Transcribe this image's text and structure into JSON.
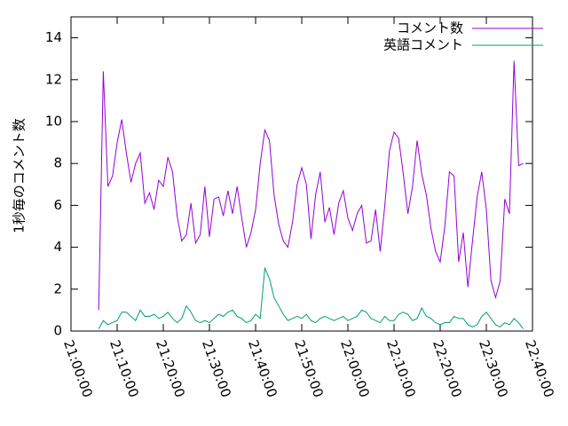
{
  "chart_data": {
    "type": "line",
    "ylabel": "1秒毎のコメント数",
    "x": [
      "21:06:00",
      "21:07:00",
      "21:08:00",
      "21:09:00",
      "21:10:00",
      "21:11:00",
      "21:12:00",
      "21:13:00",
      "21:14:00",
      "21:15:00",
      "21:16:00",
      "21:17:00",
      "21:18:00",
      "21:19:00",
      "21:20:00",
      "21:21:00",
      "21:22:00",
      "21:23:00",
      "21:24:00",
      "21:25:00",
      "21:26:00",
      "21:27:00",
      "21:28:00",
      "21:29:00",
      "21:30:00",
      "21:31:00",
      "21:32:00",
      "21:33:00",
      "21:34:00",
      "21:35:00",
      "21:36:00",
      "21:37:00",
      "21:38:00",
      "21:39:00",
      "21:40:00",
      "21:41:00",
      "21:42:00",
      "21:43:00",
      "21:44:00",
      "21:45:00",
      "21:46:00",
      "21:47:00",
      "21:48:00",
      "21:49:00",
      "21:50:00",
      "21:51:00",
      "21:52:00",
      "21:53:00",
      "21:54:00",
      "21:55:00",
      "21:56:00",
      "21:57:00",
      "21:58:00",
      "21:59:00",
      "22:00:00",
      "22:01:00",
      "22:02:00",
      "22:03:00",
      "22:04:00",
      "22:05:00",
      "22:06:00",
      "22:07:00",
      "22:08:00",
      "22:09:00",
      "22:10:00",
      "22:11:00",
      "22:12:00",
      "22:13:00",
      "22:14:00",
      "22:15:00",
      "22:16:00",
      "22:17:00",
      "22:18:00",
      "22:19:00",
      "22:20:00",
      "22:21:00",
      "22:22:00",
      "22:23:00",
      "22:24:00",
      "22:25:00",
      "22:26:00",
      "22:27:00",
      "22:28:00",
      "22:29:00",
      "22:30:00",
      "22:31:00",
      "22:32:00",
      "22:33:00",
      "22:34:00",
      "22:35:00",
      "22:36:00",
      "22:37:00",
      "22:38:00"
    ],
    "series": [
      {
        "name": "コメント数",
        "color": "#9400d3",
        "values": [
          1.0,
          12.4,
          6.9,
          7.4,
          9.0,
          10.1,
          8.5,
          7.1,
          8.0,
          8.5,
          6.1,
          6.6,
          5.8,
          7.2,
          6.9,
          8.3,
          7.6,
          5.5,
          4.3,
          4.6,
          6.1,
          4.2,
          4.6,
          6.9,
          4.5,
          6.3,
          6.4,
          5.5,
          6.7,
          5.6,
          6.9,
          5.4,
          4.0,
          4.7,
          5.8,
          8.0,
          9.6,
          9.1,
          6.5,
          5.1,
          4.3,
          4.0,
          5.2,
          7.0,
          7.8,
          7.0,
          4.4,
          6.5,
          7.6,
          5.2,
          5.9,
          4.6,
          6.1,
          6.7,
          5.4,
          4.8,
          5.6,
          6.0,
          4.2,
          4.3,
          5.8,
          3.8,
          6.0,
          8.6,
          9.5,
          9.2,
          7.5,
          5.6,
          6.9,
          9.1,
          7.5,
          6.5,
          4.9,
          3.8,
          3.3,
          5.0,
          7.6,
          7.4,
          3.3,
          4.7,
          2.1,
          4.3,
          6.4,
          7.6,
          5.8,
          2.4,
          1.6,
          2.4,
          6.3,
          5.6,
          12.9,
          7.9,
          8.0
        ]
      },
      {
        "name": "英語コメント",
        "color": "#009e73",
        "values": [
          0.1,
          0.5,
          0.3,
          0.4,
          0.5,
          0.9,
          0.9,
          0.7,
          0.5,
          1.0,
          0.7,
          0.7,
          0.8,
          0.6,
          0.7,
          0.9,
          0.6,
          0.4,
          0.6,
          1.2,
          0.9,
          0.5,
          0.4,
          0.5,
          0.4,
          0.6,
          0.8,
          0.7,
          0.9,
          1.0,
          0.7,
          0.6,
          0.4,
          0.5,
          0.8,
          0.6,
          3.0,
          2.5,
          1.6,
          1.2,
          0.8,
          0.5,
          0.6,
          0.7,
          0.6,
          0.8,
          0.5,
          0.4,
          0.6,
          0.7,
          0.6,
          0.5,
          0.6,
          0.7,
          0.5,
          0.6,
          0.7,
          1.0,
          0.9,
          0.6,
          0.5,
          0.4,
          0.7,
          0.5,
          0.5,
          0.8,
          0.9,
          0.8,
          0.5,
          0.6,
          1.1,
          0.7,
          0.6,
          0.4,
          0.3,
          0.4,
          0.4,
          0.7,
          0.6,
          0.6,
          0.3,
          0.2,
          0.3,
          0.7,
          0.9,
          0.6,
          0.3,
          0.2,
          0.4,
          0.3,
          0.6,
          0.4,
          0.1
        ]
      }
    ],
    "xlim": [
      "21:00:00",
      "22:40:00"
    ],
    "xticks": [
      "21:00:00",
      "21:10:00",
      "21:20:00",
      "21:30:00",
      "21:40:00",
      "21:50:00",
      "22:00:00",
      "22:10:00",
      "22:20:00",
      "22:30:00",
      "22:40:00"
    ],
    "ylim": [
      0,
      15
    ],
    "yticks": [
      0,
      2,
      4,
      6,
      8,
      10,
      12,
      14
    ],
    "legend": "top-right"
  }
}
